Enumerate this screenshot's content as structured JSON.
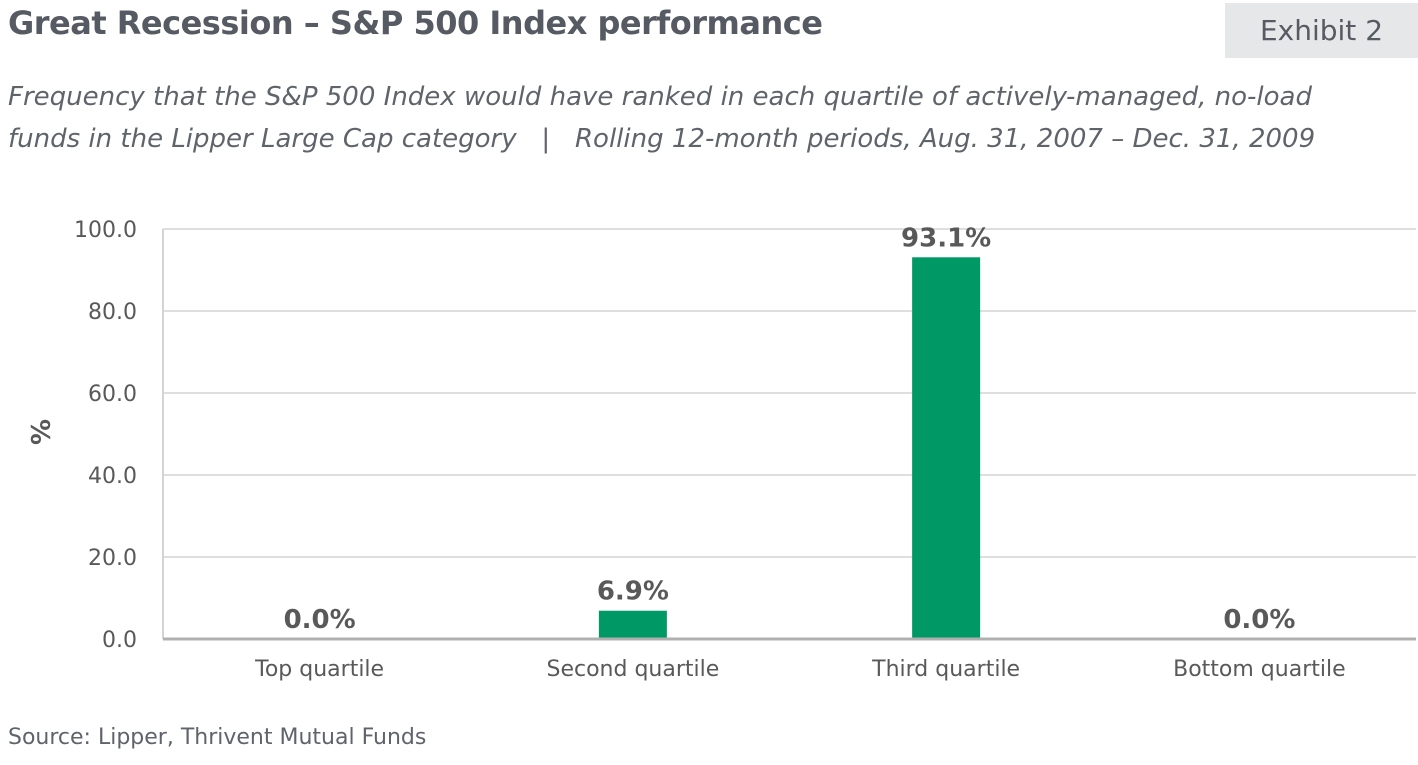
{
  "header": {
    "title": "Great Recession – S&P 500 Index performance",
    "exhibit": "Exhibit 2",
    "subtitle_line1": "Frequency that the S&P 500 Index would have ranked in each quartile of actively-managed, no-load",
    "subtitle_line2": "funds in the Lipper Large Cap category   |   Rolling 12-month periods, Aug. 31, 2007 – Dec. 31, 2009"
  },
  "footer": {
    "source": "Source: Lipper, Thrivent Mutual Funds"
  },
  "colors": {
    "bar": "#009966",
    "grid": "#d4d4d4",
    "axis": "#b0b0b0",
    "label": "#595959"
  },
  "chart_data": {
    "type": "bar",
    "categories": [
      "Top quartile",
      "Second quartile",
      "Third quartile",
      "Bottom quartile"
    ],
    "values": [
      0.0,
      6.9,
      93.1,
      0.0
    ],
    "data_labels": [
      "0.0%",
      "6.9%",
      "93.1%",
      "0.0%"
    ],
    "ylabel": "%",
    "xlabel": "",
    "ylim": [
      0,
      100
    ],
    "yticks": [
      0,
      20,
      40,
      60,
      80,
      100
    ],
    "ytick_labels": [
      "0.0",
      "20.0",
      "40.0",
      "60.0",
      "80.0",
      "100.0"
    ],
    "grid": true,
    "legend": "none"
  }
}
